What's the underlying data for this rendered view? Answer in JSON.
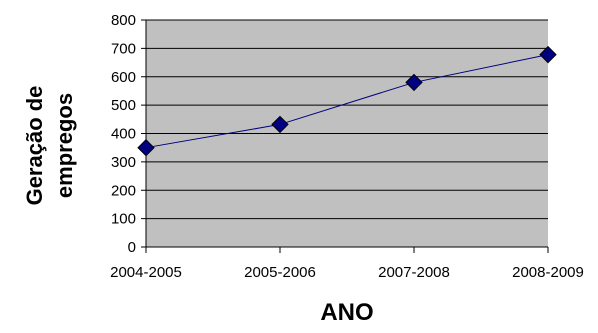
{
  "chart_data": {
    "type": "line",
    "categories": [
      "2004-2005",
      "2005-2006",
      "2007-2008",
      "2008-2009"
    ],
    "series": [
      {
        "values": [
          350,
          432,
          580,
          678
        ],
        "color": "#000080",
        "marker": "diamond"
      }
    ],
    "xlabel": "ANO",
    "ylabel": "Geração de empregos",
    "ylabel_lines": [
      "Geração de",
      "empregos"
    ],
    "ylim": [
      0,
      800
    ],
    "yticks": [
      0,
      100,
      200,
      300,
      400,
      500,
      600,
      700,
      800
    ],
    "ytick_labels": [
      "0",
      "100",
      "200",
      "300",
      "400",
      "500",
      "600",
      "700",
      "800"
    ],
    "grid": "horizontal",
    "plot_background": "#c0c0c0",
    "marker_color": "#000080",
    "line_color": "#000080"
  }
}
